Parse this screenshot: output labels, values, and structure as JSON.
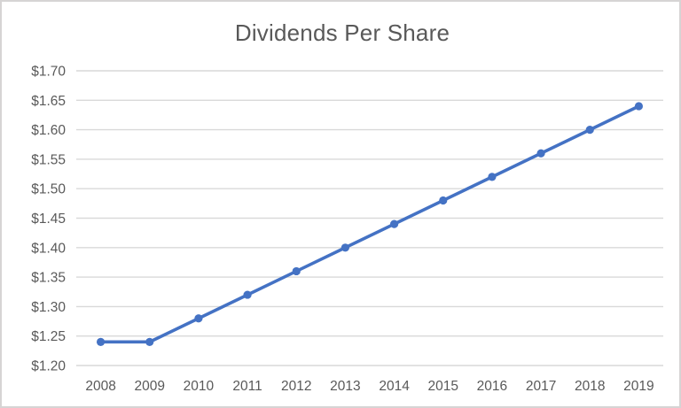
{
  "window": {
    "background": "#ffffff",
    "frame_color": "#d6d4d4"
  },
  "chart_data": {
    "type": "line",
    "title": "Dividends Per Share",
    "categories": [
      "2008",
      "2009",
      "2010",
      "2011",
      "2012",
      "2013",
      "2014",
      "2015",
      "2016",
      "2017",
      "2018",
      "2019"
    ],
    "series": [
      {
        "name": "Dividends Per Share",
        "values": [
          1.24,
          1.24,
          1.28,
          1.32,
          1.36,
          1.4,
          1.44,
          1.48,
          1.52,
          1.56,
          1.6,
          1.64
        ]
      }
    ],
    "xlabel": "",
    "ylabel": "",
    "ylim": [
      1.2,
      1.7
    ],
    "ytick_values": [
      1.2,
      1.25,
      1.3,
      1.35,
      1.4,
      1.45,
      1.5,
      1.55,
      1.6,
      1.65,
      1.7
    ],
    "ytick_labels": [
      "$1.20",
      "$1.25",
      "$1.30",
      "$1.35",
      "$1.40",
      "$1.45",
      "$1.50",
      "$1.55",
      "$1.60",
      "$1.65",
      "$1.70"
    ],
    "grid": "horizontal",
    "legend": "none",
    "marker": "circle",
    "line_color": "#4472C4",
    "grid_color": "#D9D9D9",
    "text_color": "#595959"
  }
}
